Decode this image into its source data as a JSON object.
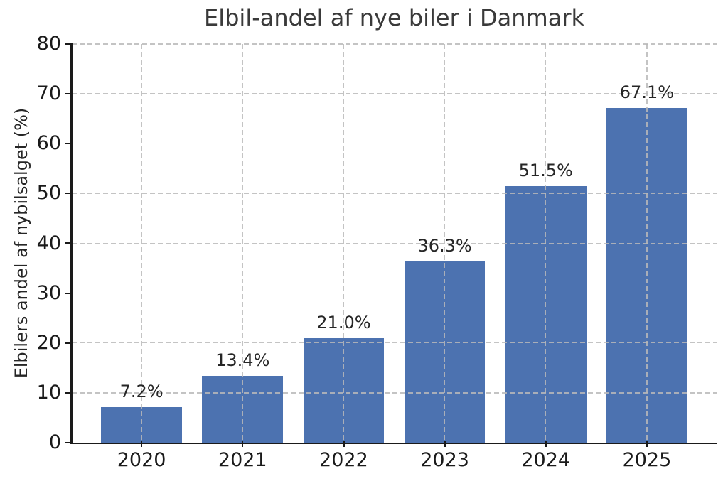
{
  "chart_data": {
    "type": "bar",
    "title": "Elbil-andel af nye biler i Danmark",
    "ylabel": "Elbilers andel af nybilsalget (%)",
    "xlabel": "",
    "categories": [
      "2020",
      "2021",
      "2022",
      "2023",
      "2024",
      "2025"
    ],
    "values": [
      7.2,
      13.4,
      21.0,
      36.3,
      51.5,
      67.1
    ],
    "value_labels": [
      "7.2%",
      "13.4%",
      "21.0%",
      "36.3%",
      "51.5%",
      "67.1%"
    ],
    "ylim": [
      0,
      80
    ],
    "yticks": [
      0,
      10,
      20,
      30,
      40,
      50,
      60,
      70,
      80
    ],
    "ytick_labels": [
      "0",
      "10",
      "20",
      "30",
      "40",
      "50",
      "60",
      "70",
      "80"
    ],
    "grid": "dashed, horizontal and vertical, drawn above bars",
    "legend_position": "none",
    "bar_color": "#4C72B0",
    "grid_color": "#b9b9b9",
    "axis_color": "#1a1a1a",
    "text_color": "#262626",
    "title_color": "#3a3a3a"
  }
}
